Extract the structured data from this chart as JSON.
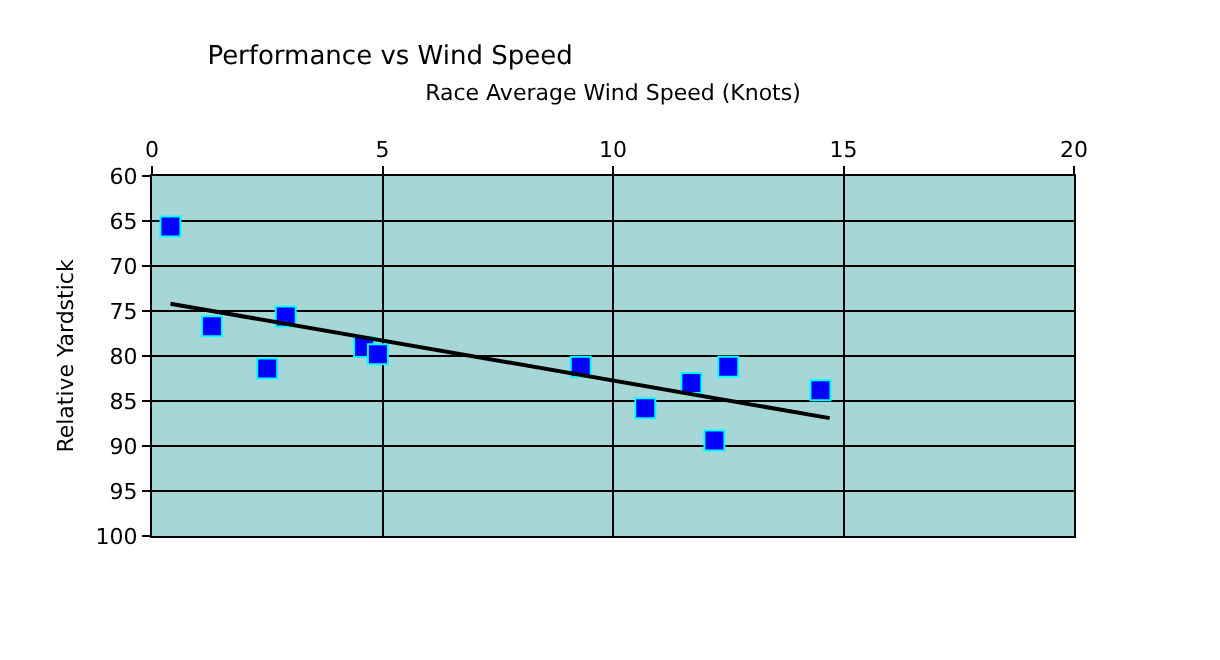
{
  "chart_data": {
    "type": "scatter",
    "title": "Performance vs Wind Speed",
    "xlabel": "Race Average Wind Speed (Knots)",
    "ylabel": "Relative Yardstick",
    "xlim": [
      0,
      20
    ],
    "xticks": [
      0,
      5,
      10,
      15,
      20
    ],
    "ylim": [
      100,
      60
    ],
    "yticks": [
      60,
      65,
      70,
      75,
      80,
      85,
      90,
      95,
      100
    ],
    "grid": true,
    "marker": "square",
    "series": [
      {
        "color": "#0000ff",
        "x": [
          0.4,
          1.3,
          2.5,
          2.9,
          4.6,
          4.9,
          9.3,
          10.7,
          11.7,
          12.2,
          12.5,
          14.5
        ],
        "values": [
          65.6,
          76.7,
          81.4,
          75.6,
          79.0,
          79.8,
          81.2,
          85.8,
          83.0,
          89.4,
          81.2,
          83.8
        ]
      },
      {
        "type": "line",
        "color": "#000000",
        "marker": "none",
        "x": [
          0.4,
          14.7
        ],
        "values": [
          74.2,
          86.9
        ]
      }
    ]
  }
}
